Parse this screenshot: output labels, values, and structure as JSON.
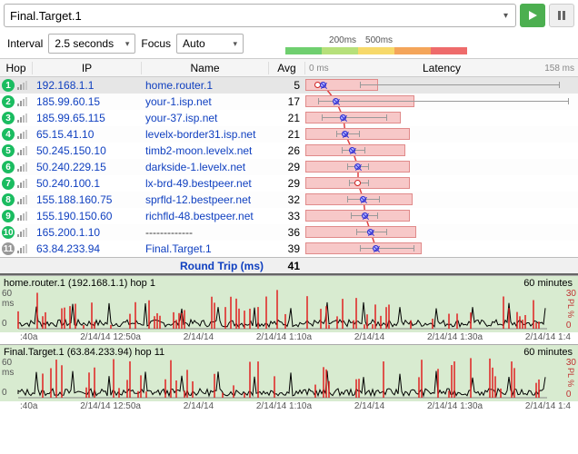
{
  "target": "Final.Target.1",
  "interval_label": "Interval",
  "interval_value": "2.5 seconds",
  "focus_label": "Focus",
  "focus_value": "Auto",
  "legend": {
    "l200": "200ms",
    "l500": "500ms",
    "colors": [
      "#6fcf6f",
      "#b6e07a",
      "#f7d96a",
      "#f4a55a",
      "#ee6b6b"
    ]
  },
  "columns": {
    "hop": "Hop",
    "ip": "IP",
    "name": "Name",
    "avg": "Avg",
    "latency": "Latency"
  },
  "lat_axis": {
    "min": "0 ms",
    "max": "158 ms",
    "maxval": 158
  },
  "hops": [
    {
      "n": 1,
      "ip": "192.168.1.1",
      "name": "home.router.1",
      "avg": 5,
      "sel": true,
      "bar_start": 0,
      "bar_end": 80,
      "wb": 60,
      "we": 280,
      "ring": 10,
      "mark": 16
    },
    {
      "n": 2,
      "ip": "185.99.60.15",
      "name": "your-1.isp.net",
      "avg": 17,
      "bar_start": 0,
      "bar_end": 120,
      "wb": 14,
      "we": 290,
      "ring": 0,
      "mark": 30
    },
    {
      "n": 3,
      "ip": "185.99.65.115",
      "name": "your-37.isp.net",
      "avg": 21,
      "bar_start": 0,
      "bar_end": 105,
      "wb": 18,
      "we": 90,
      "ring": 0,
      "mark": 38
    },
    {
      "n": 4,
      "ip": "65.15.41.10",
      "name": "levelx-border31.isp.net",
      "avg": 21,
      "bar_start": 0,
      "bar_end": 115,
      "wb": 34,
      "we": 60,
      "ring": 0,
      "mark": 40
    },
    {
      "n": 5,
      "ip": "50.245.150.10",
      "name": "timb2-moon.levelx.net",
      "avg": 26,
      "bar_start": 0,
      "bar_end": 110,
      "wb": 40,
      "we": 66,
      "ring": 0,
      "mark": 48
    },
    {
      "n": 6,
      "ip": "50.240.229.15",
      "name": "darkside-1.levelx.net",
      "avg": 29,
      "bar_start": 0,
      "bar_end": 115,
      "wb": 46,
      "we": 70,
      "ring": 0,
      "mark": 54
    },
    {
      "n": 7,
      "ip": "50.240.100.1",
      "name": "lx-brd-49.bestpeer.net",
      "avg": 29,
      "bar_start": 0,
      "bar_end": 115,
      "wb": 48,
      "we": 70,
      "ring": 54,
      "mark": 0
    },
    {
      "n": 8,
      "ip": "155.188.160.75",
      "name": "sprfld-12.bestpeer.net",
      "avg": 32,
      "bar_start": 0,
      "bar_end": 118,
      "wb": 46,
      "we": 82,
      "ring": 0,
      "mark": 60
    },
    {
      "n": 9,
      "ip": "155.190.150.60",
      "name": "richfld-48.bestpeer.net",
      "avg": 33,
      "bar_start": 0,
      "bar_end": 115,
      "wb": 50,
      "we": 80,
      "ring": 0,
      "mark": 62
    },
    {
      "n": 10,
      "ip": "165.200.1.10",
      "name": "-------------",
      "avg": 36,
      "dash": true,
      "bar_start": 0,
      "bar_end": 122,
      "wb": 56,
      "we": 90,
      "ring": 0,
      "mark": 68
    },
    {
      "n": 11,
      "ip": "63.84.233.94",
      "name": "Final.Target.1",
      "avg": 39,
      "gray": true,
      "bar_start": 0,
      "bar_end": 128,
      "wb": 60,
      "we": 120,
      "ring": 0,
      "mark": 74
    }
  ],
  "summary": {
    "label": "Round Trip (ms)",
    "value": 41
  },
  "ts": [
    {
      "title": "home.router.1 (192.168.1.1) hop 1",
      "dur": "60 minutes",
      "yl": [
        "60",
        "ms",
        "0"
      ],
      "yr": [
        "30",
        "PL %",
        "0"
      ],
      "xticks": [
        ":40a",
        "2/14/14 12:50a",
        "2/14/14",
        "2/14/14 1:10a",
        "2/14/14",
        "2/14/14 1:30a",
        "2/14/14 1:4"
      ],
      "seed": 7
    },
    {
      "title": "Final.Target.1 (63.84.233.94) hop 11",
      "dur": "60 minutes",
      "yl": [
        "60",
        "ms",
        "0"
      ],
      "yr": [
        "30",
        "PL %",
        "0"
      ],
      "xticks": [
        ":40a",
        "2/14/14 12:50a",
        "2/14/14",
        "2/14/14 1:10a",
        "2/14/14",
        "2/14/14 1:30a",
        "2/14/14 1:4"
      ],
      "seed": 13
    }
  ]
}
